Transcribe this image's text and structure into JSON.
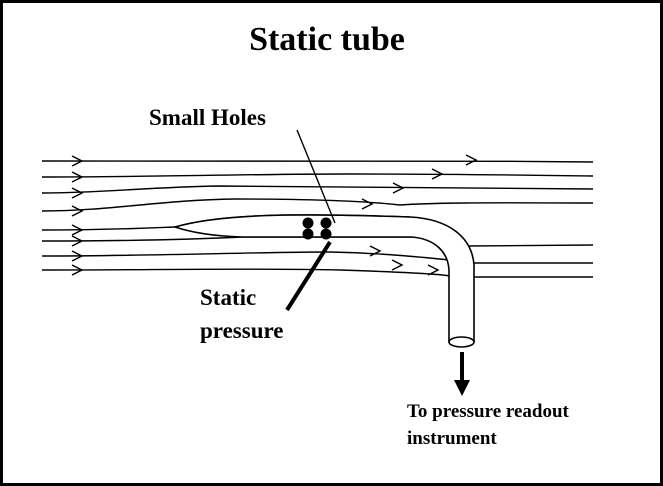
{
  "title": "Static tube",
  "labels": {
    "small_holes": "Small Holes",
    "static_pressure": [
      "Static",
      "pressure"
    ],
    "readout": [
      "To pressure readout",
      "instrument"
    ]
  },
  "colors": {
    "ink": "#000000",
    "background": "#ffffff"
  },
  "streamline_count": 8
}
